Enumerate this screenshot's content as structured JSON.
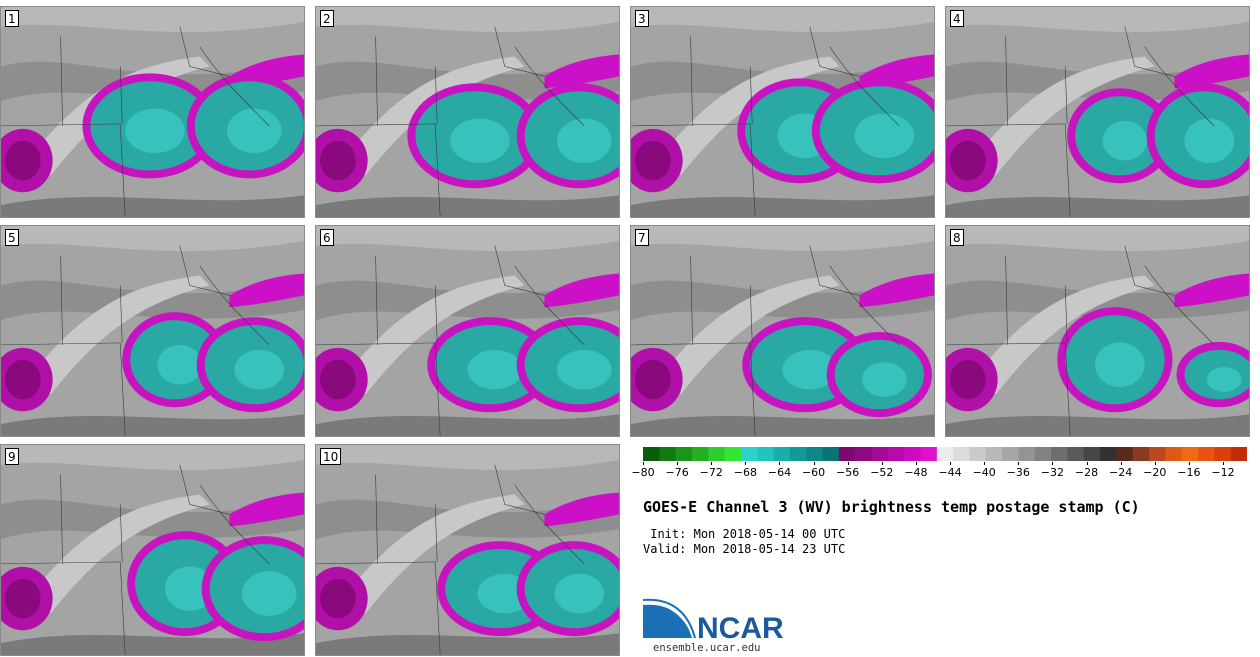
{
  "title": "GOES-E Channel 3 (WV) brightness temp postage stamp (C)",
  "init": {
    "label": "Init:",
    "value": "Mon 2018-05-14 00 UTC"
  },
  "valid": {
    "label": "Valid:",
    "value": "Mon 2018-05-14 23 UTC"
  },
  "logo": {
    "text": "NCAR",
    "url": "ensemble.ucar.edu"
  },
  "panels": [
    {
      "label": "1"
    },
    {
      "label": "2"
    },
    {
      "label": "3"
    },
    {
      "label": "4"
    },
    {
      "label": "5"
    },
    {
      "label": "6"
    },
    {
      "label": "7"
    },
    {
      "label": "8"
    },
    {
      "label": "9"
    },
    {
      "label": "10"
    }
  ],
  "colorbar": {
    "ticks": [
      "−80",
      "−76",
      "−72",
      "−68",
      "−64",
      "−60",
      "−56",
      "−52",
      "−48",
      "−44",
      "−40",
      "−36",
      "−32",
      "−28",
      "−24",
      "−20",
      "−16",
      "−12"
    ],
    "colors": [
      "#0b5d0b",
      "#137a13",
      "#1a951a",
      "#22b022",
      "#2ccd2c",
      "#33e633",
      "#2bd3cf",
      "#22c4c0",
      "#19aeab",
      "#129a98",
      "#0d8785",
      "#0a7472",
      "#7a0a6e",
      "#8e0a82",
      "#a30a96",
      "#b80aab",
      "#cc0abf",
      "#dd12d0",
      "#ececec",
      "#dcdcdc",
      "#cacaca",
      "#b8b8b8",
      "#a6a6a6",
      "#949494",
      "#828282",
      "#6e6e6e",
      "#5a5a5a",
      "#464646",
      "#323232",
      "#5a2a1a",
      "#8a3a1e",
      "#b84a1e",
      "#dd5a16",
      "#ef6a12",
      "#e85410",
      "#d8400c",
      "#c42c0a"
    ]
  },
  "icons": {
    "logo": "ncar-logo-icon"
  }
}
